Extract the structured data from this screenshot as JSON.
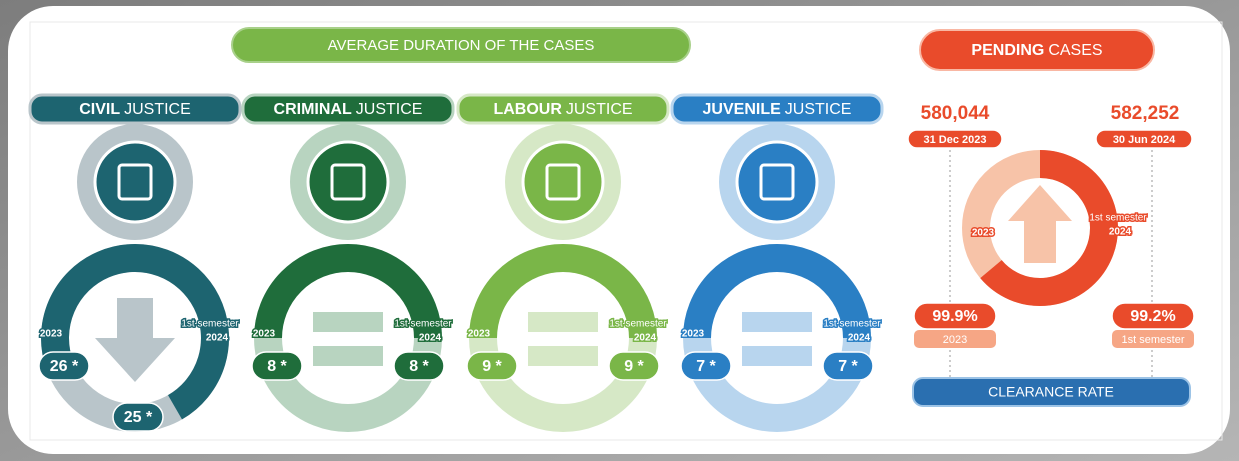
{
  "duration": {
    "title": "AVERAGE DURATION OF THE CASES",
    "panels": [
      {
        "name_bold": "CIVIL",
        "name_rest": "JUSTICE",
        "year_a": "2023",
        "year_b1": "1st semester",
        "year_b2": "2024",
        "value_a": "26 *",
        "value_b": "25 *"
      },
      {
        "name_bold": "CRIMINAL",
        "name_rest": "JUSTICE",
        "year_a": "2023",
        "year_b1": "1st semester",
        "year_b2": "2024",
        "value_a": "8 *",
        "value_b": "8 *"
      },
      {
        "name_bold": "LABOUR",
        "name_rest": "JUSTICE",
        "year_a": "2023",
        "year_b1": "1st semester",
        "year_b2": "2024",
        "value_a": "9 *",
        "value_b": "9 *"
      },
      {
        "name_bold": "JUVENILE",
        "name_rest": "JUSTICE",
        "year_a": "2023",
        "year_b1": "1st semester",
        "year_b2": "2024",
        "value_a": "7 *",
        "value_b": "7 *"
      }
    ]
  },
  "pending": {
    "title_bold": "PENDING",
    "title_rest": "CASES",
    "start": {
      "value": "580,044",
      "date": "31 Dec 2023"
    },
    "end": {
      "value": "582,252",
      "date": "30 Jun 2024"
    },
    "ring": {
      "year_a": "2023",
      "year_b1": "1st semester",
      "year_b2": "2024"
    },
    "clearance": {
      "title": "CLEARANCE RATE",
      "a_value": "99.9%",
      "a_label": "2023",
      "b_value": "99.2%",
      "b_label": "1st semester"
    }
  }
}
